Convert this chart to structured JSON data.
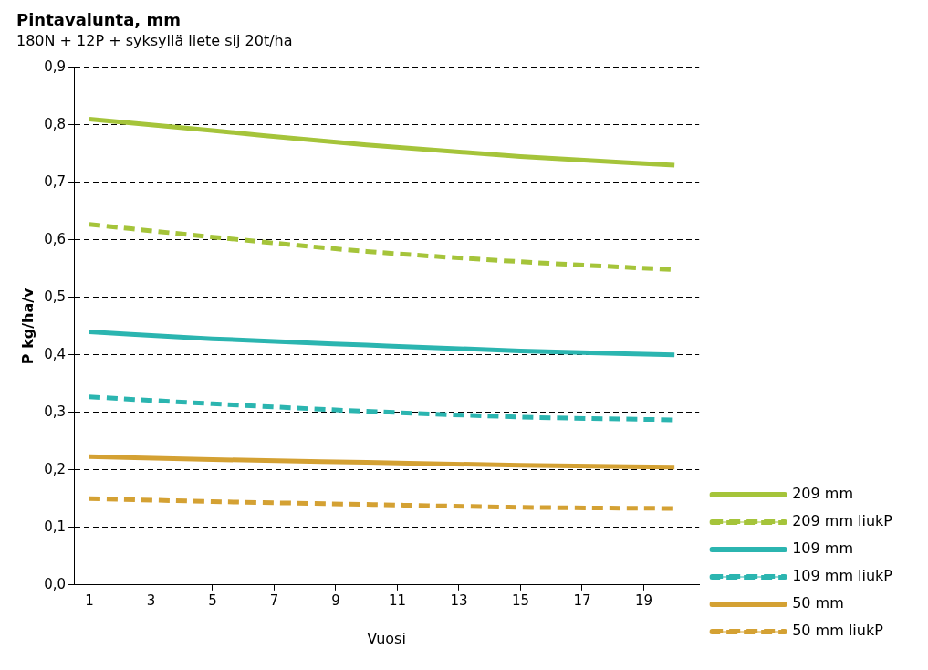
{
  "chart_data": {
    "type": "line",
    "title": "Pintavalunta, mm",
    "subtitle": "180N + 12P + syksyllä liete sij 20t/ha",
    "xlabel": "Vuosi",
    "ylabel": "P kg/ha/v",
    "xlim": [
      0.5,
      20.8
    ],
    "xticks": [
      1,
      3,
      5,
      7,
      9,
      11,
      13,
      15,
      17,
      19
    ],
    "ylim": [
      0,
      0.9
    ],
    "yticks": [
      {
        "value": 0,
        "label": "0,0"
      },
      {
        "value": 0.1,
        "label": "0,1"
      },
      {
        "value": 0.2,
        "label": "0,2"
      },
      {
        "value": 0.3,
        "label": "0,3"
      },
      {
        "value": 0.4,
        "label": "0,4"
      },
      {
        "value": 0.5,
        "label": "0,5"
      },
      {
        "value": 0.6,
        "label": "0,6"
      },
      {
        "value": 0.7,
        "label": "0,7"
      },
      {
        "value": 0.8,
        "label": "0,8"
      },
      {
        "value": 0.9,
        "label": "0,9"
      }
    ],
    "grid": "y",
    "legend": "right",
    "marker": "none",
    "series": [
      {
        "name": "209 mm",
        "color": "#a5c43a",
        "line_style": "solid",
        "x": [
          1,
          5,
          10,
          15,
          20
        ],
        "values": [
          0.81,
          0.79,
          0.765,
          0.745,
          0.73
        ]
      },
      {
        "name": "209 mm liukP",
        "color": "#a5c43a",
        "line_style": "dashed",
        "x": [
          1,
          5,
          10,
          15,
          20
        ],
        "values": [
          0.627,
          0.605,
          0.58,
          0.562,
          0.548
        ]
      },
      {
        "name": "109 mm",
        "color": "#2bb5b0",
        "line_style": "solid",
        "x": [
          1,
          5,
          10,
          15,
          20
        ],
        "values": [
          0.44,
          0.428,
          0.417,
          0.407,
          0.4
        ]
      },
      {
        "name": "109 mm liukP",
        "color": "#2bb5b0",
        "line_style": "dashed",
        "x": [
          1,
          5,
          10,
          15,
          20
        ],
        "values": [
          0.327,
          0.315,
          0.302,
          0.292,
          0.287
        ]
      },
      {
        "name": "50 mm",
        "color": "#d4a133",
        "line_style": "solid",
        "x": [
          1,
          5,
          10,
          15,
          20
        ],
        "values": [
          0.223,
          0.218,
          0.213,
          0.208,
          0.205
        ]
      },
      {
        "name": "50 mm liukP",
        "color": "#d4a133",
        "line_style": "dashed",
        "x": [
          1,
          5,
          10,
          15,
          20
        ],
        "values": [
          0.15,
          0.145,
          0.14,
          0.135,
          0.133
        ]
      }
    ]
  }
}
